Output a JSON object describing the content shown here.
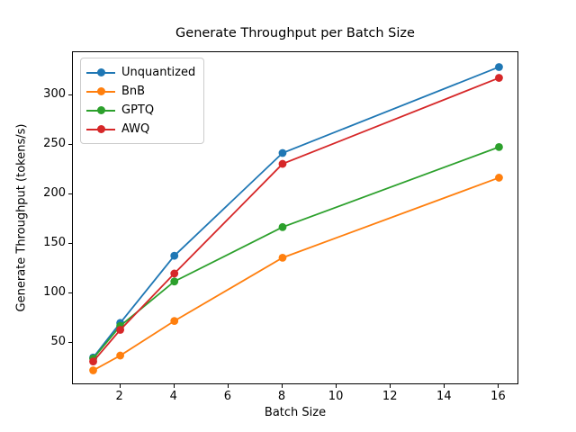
{
  "chart_data": {
    "type": "line",
    "title": "Generate Throughput per Batch Size",
    "xlabel": "Batch Size",
    "ylabel": "Generate Throughput (tokens/s)",
    "x": [
      1,
      2,
      4,
      8,
      16
    ],
    "series": [
      {
        "name": "Unquantized",
        "color": "#1f77b4",
        "values": [
          35,
          70,
          138,
          242,
          329
        ]
      },
      {
        "name": "BnB",
        "color": "#ff7f0e",
        "values": [
          22,
          37,
          72,
          136,
          217
        ]
      },
      {
        "name": "GPTQ",
        "color": "#2ca02c",
        "values": [
          34,
          67,
          112,
          167,
          248
        ]
      },
      {
        "name": "AWQ",
        "color": "#d62728",
        "values": [
          31,
          63,
          120,
          231,
          318
        ]
      }
    ],
    "xlim": [
      0.25,
      16.75
    ],
    "ylim": [
      7,
      344
    ],
    "x_ticks": [
      2,
      4,
      6,
      8,
      10,
      12,
      14,
      16
    ],
    "y_ticks": [
      50,
      100,
      150,
      200,
      250,
      300
    ],
    "grid": false,
    "legend_position": "upper left",
    "marker": "o",
    "line_width": 1.8,
    "marker_radius": 4.4,
    "spine_color": "#000000",
    "background_color": "#ffffff"
  }
}
